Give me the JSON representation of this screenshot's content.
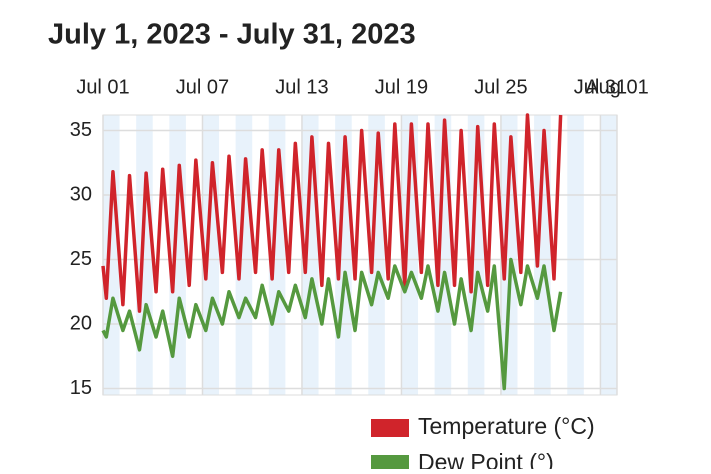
{
  "chart_data": {
    "type": "line",
    "title": "July 1, 2023 - July 31, 2023",
    "x": [
      1.0,
      1.2,
      1.6,
      2.2,
      2.6,
      3.2,
      3.6,
      4.2,
      4.6,
      5.2,
      5.6,
      6.2,
      6.6,
      7.2,
      7.6,
      8.2,
      8.6,
      9.2,
      9.6,
      10.2,
      10.6,
      11.2,
      11.6,
      12.2,
      12.6,
      13.2,
      13.6,
      14.2,
      14.6,
      15.2,
      15.6,
      16.2,
      16.6,
      17.2,
      17.6,
      18.2,
      18.6,
      19.2,
      19.6,
      20.2,
      20.6,
      21.2,
      21.6,
      22.2,
      22.6,
      23.2,
      23.6,
      24.2,
      24.6,
      25.2,
      25.6,
      26.2,
      26.6,
      27.2,
      27.6,
      28.2,
      28.6
    ],
    "series": [
      {
        "name": "Temperature (°C)",
        "color": "#d0242b",
        "values": [
          24.5,
          22,
          31.8,
          21.5,
          31.5,
          21,
          31.7,
          22.5,
          32,
          22.5,
          32.3,
          23,
          32.7,
          23.5,
          32.5,
          24,
          33,
          23.5,
          32.8,
          24,
          33.5,
          23.5,
          33.5,
          24,
          34,
          24,
          34.5,
          23,
          34,
          23.5,
          34.5,
          23.5,
          35,
          24,
          34.8,
          23.5,
          35.5,
          23,
          35.5,
          24,
          35.5,
          23,
          35.8,
          23,
          35,
          22.5,
          35.3,
          23,
          35.5,
          23.5,
          34.5,
          24,
          36.2,
          24.5,
          35,
          23.5,
          36.2
        ]
      },
      {
        "name": "Dew Point (°)",
        "color": "#55993f",
        "values": [
          19.5,
          19,
          22,
          19.5,
          21,
          18,
          21.5,
          19,
          21,
          17.5,
          22,
          19,
          21.5,
          19.5,
          22,
          20,
          22.5,
          20.5,
          22,
          20.5,
          23,
          20,
          22.5,
          21,
          23,
          20.5,
          23.5,
          20,
          23.5,
          19,
          24,
          19.5,
          24,
          21.5,
          24,
          22,
          24.5,
          22.5,
          24,
          22,
          24.5,
          21,
          24,
          20,
          23.5,
          19.5,
          24,
          21,
          24.5,
          15,
          25,
          21.5,
          24.5,
          22,
          24.5,
          19.5,
          22.5
        ]
      }
    ],
    "xlim": [
      1,
      32
    ],
    "ylim": [
      14.5,
      36.2
    ],
    "xticks": [
      {
        "value": 1,
        "label": "Jul 01"
      },
      {
        "value": 7,
        "label": "Jul 07"
      },
      {
        "value": 13,
        "label": "Jul 13"
      },
      {
        "value": 19,
        "label": "Jul 19"
      },
      {
        "value": 25,
        "label": "Jul 25"
      },
      {
        "value": 31,
        "label": "Jul 31"
      },
      {
        "value": 32,
        "label": "Aug 01"
      }
    ],
    "yticks": [
      15,
      20,
      25,
      30,
      35
    ],
    "grid": true
  }
}
